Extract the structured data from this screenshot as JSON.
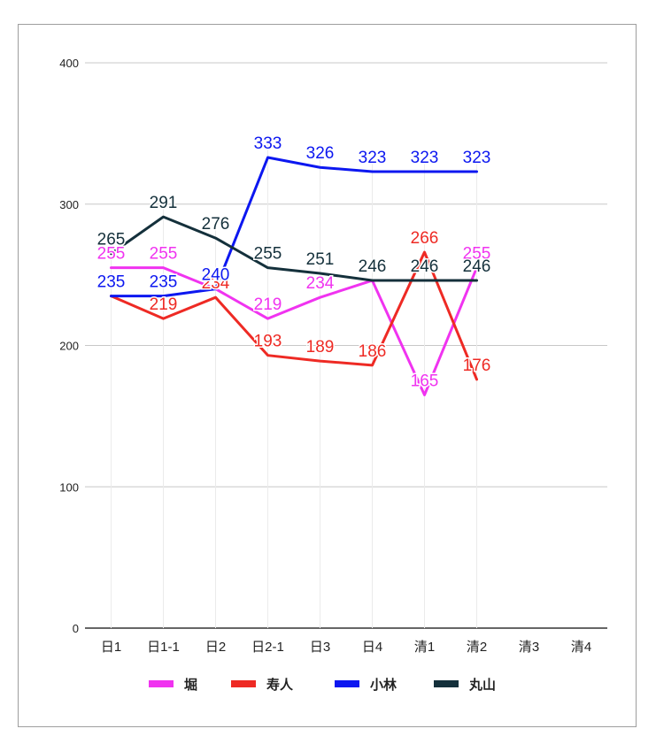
{
  "chart_data": {
    "type": "line",
    "categories": [
      "日1",
      "日1-1",
      "日2",
      "日2-1",
      "日3",
      "日4",
      "清1",
      "清2",
      "清3",
      "清4"
    ],
    "ylim": [
      0,
      400
    ],
    "yticks": [
      0,
      100,
      200,
      300,
      400
    ],
    "grid": true,
    "legend_position": "bottom",
    "series": [
      {
        "name": "堀",
        "color": "#f033f0",
        "values": [
          255,
          255,
          240,
          219,
          234,
          246,
          165,
          255,
          null,
          null
        ],
        "labels": [
          "255",
          "255",
          "",
          "219",
          "234",
          "",
          "165",
          "255",
          "",
          ""
        ]
      },
      {
        "name": "寿人",
        "color": "#ee2a24",
        "values": [
          235,
          219,
          234,
          193,
          189,
          186,
          266,
          176,
          null,
          null
        ],
        "labels": [
          "",
          "219",
          "234",
          "193",
          "189",
          "186",
          "266",
          "176",
          "",
          ""
        ]
      },
      {
        "name": "小林",
        "color": "#0c17f0",
        "values": [
          235,
          235,
          240,
          333,
          326,
          323,
          323,
          323,
          null,
          null
        ],
        "labels": [
          "235",
          "235",
          "240",
          "333",
          "326",
          "323",
          "323",
          "323",
          "",
          ""
        ]
      },
      {
        "name": "丸山",
        "color": "#14303b",
        "values": [
          265,
          291,
          276,
          255,
          251,
          246,
          246,
          246,
          null,
          null
        ],
        "labels": [
          "265",
          "291",
          "276",
          "255",
          "251",
          "246",
          "246",
          "246",
          "",
          ""
        ]
      }
    ]
  }
}
